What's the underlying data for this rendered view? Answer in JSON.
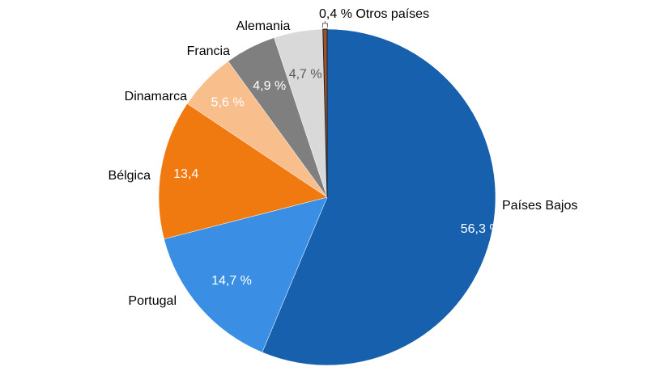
{
  "chart_data": {
    "type": "pie",
    "start": "top",
    "direction": "clockwise",
    "series": [
      {
        "category": "Países Bajos",
        "value": 56.3,
        "data_label": "56,3 %",
        "color": "#1660AE",
        "label_color": "#FFFFFF"
      },
      {
        "category": "Portugal",
        "value": 14.7,
        "data_label": "14,7 %",
        "color": "#3A8FE5",
        "label_color": "#FFFFFF"
      },
      {
        "category": "Bélgica",
        "value": 13.4,
        "data_label": "13,4",
        "color": "#F07A10",
        "label_color": "#FFFFFF"
      },
      {
        "category": "Dinamarca",
        "value": 5.6,
        "data_label": "5,6 %",
        "color": "#F8BE8C",
        "label_color": "#FFFFFF"
      },
      {
        "category": "Francia",
        "value": 4.9,
        "data_label": "4,9 %",
        "color": "#7F7F7F",
        "label_color": "#FFFFFF"
      },
      {
        "category": "Alemania",
        "value": 4.7,
        "data_label": "4,7 %",
        "color": "#D9D9D9",
        "label_color": "#595959"
      },
      {
        "category": "Otros países",
        "value": 0.4,
        "data_label": "0,4 % Otros países",
        "color": "#A0522D",
        "label_color": "#000000"
      }
    ],
    "legend": "none"
  }
}
